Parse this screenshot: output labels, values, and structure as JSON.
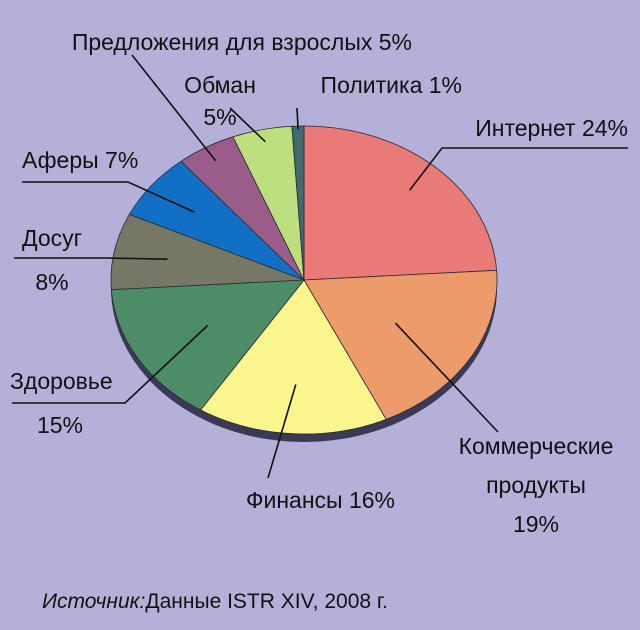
{
  "chart_data": {
    "type": "pie",
    "slices": [
      {
        "name": "Интернет",
        "value": 24,
        "value_label": "24%",
        "color": "#e97a78"
      },
      {
        "name": "Коммерческие продукты",
        "value": 19,
        "value_label": "19%",
        "color": "#ed9b6a"
      },
      {
        "name": "Финансы",
        "value": 16,
        "value_label": "16%",
        "color": "#fbf58e"
      },
      {
        "name": "Здоровье",
        "value": 15,
        "value_label": "15%",
        "color": "#4c8d68"
      },
      {
        "name": "Досуг",
        "value": 8,
        "value_label": "8%",
        "color": "#777766"
      },
      {
        "name": "Аферы",
        "value": 7,
        "value_label": "7%",
        "color": "#1170c4"
      },
      {
        "name": "Предложения для взрослых",
        "value": 5,
        "value_label": "5%",
        "color": "#9a5d8a"
      },
      {
        "name": "Обман",
        "value": 5,
        "value_label": "5%",
        "color": "#bedf7e"
      },
      {
        "name": "Политика",
        "value": 1,
        "value_label": "1%",
        "color": "#3f6a6e"
      }
    ],
    "background_color": "#b5b0d8"
  },
  "source": {
    "label": "Источник:",
    "text": "Данные ISTR XIV, 2008 г."
  }
}
